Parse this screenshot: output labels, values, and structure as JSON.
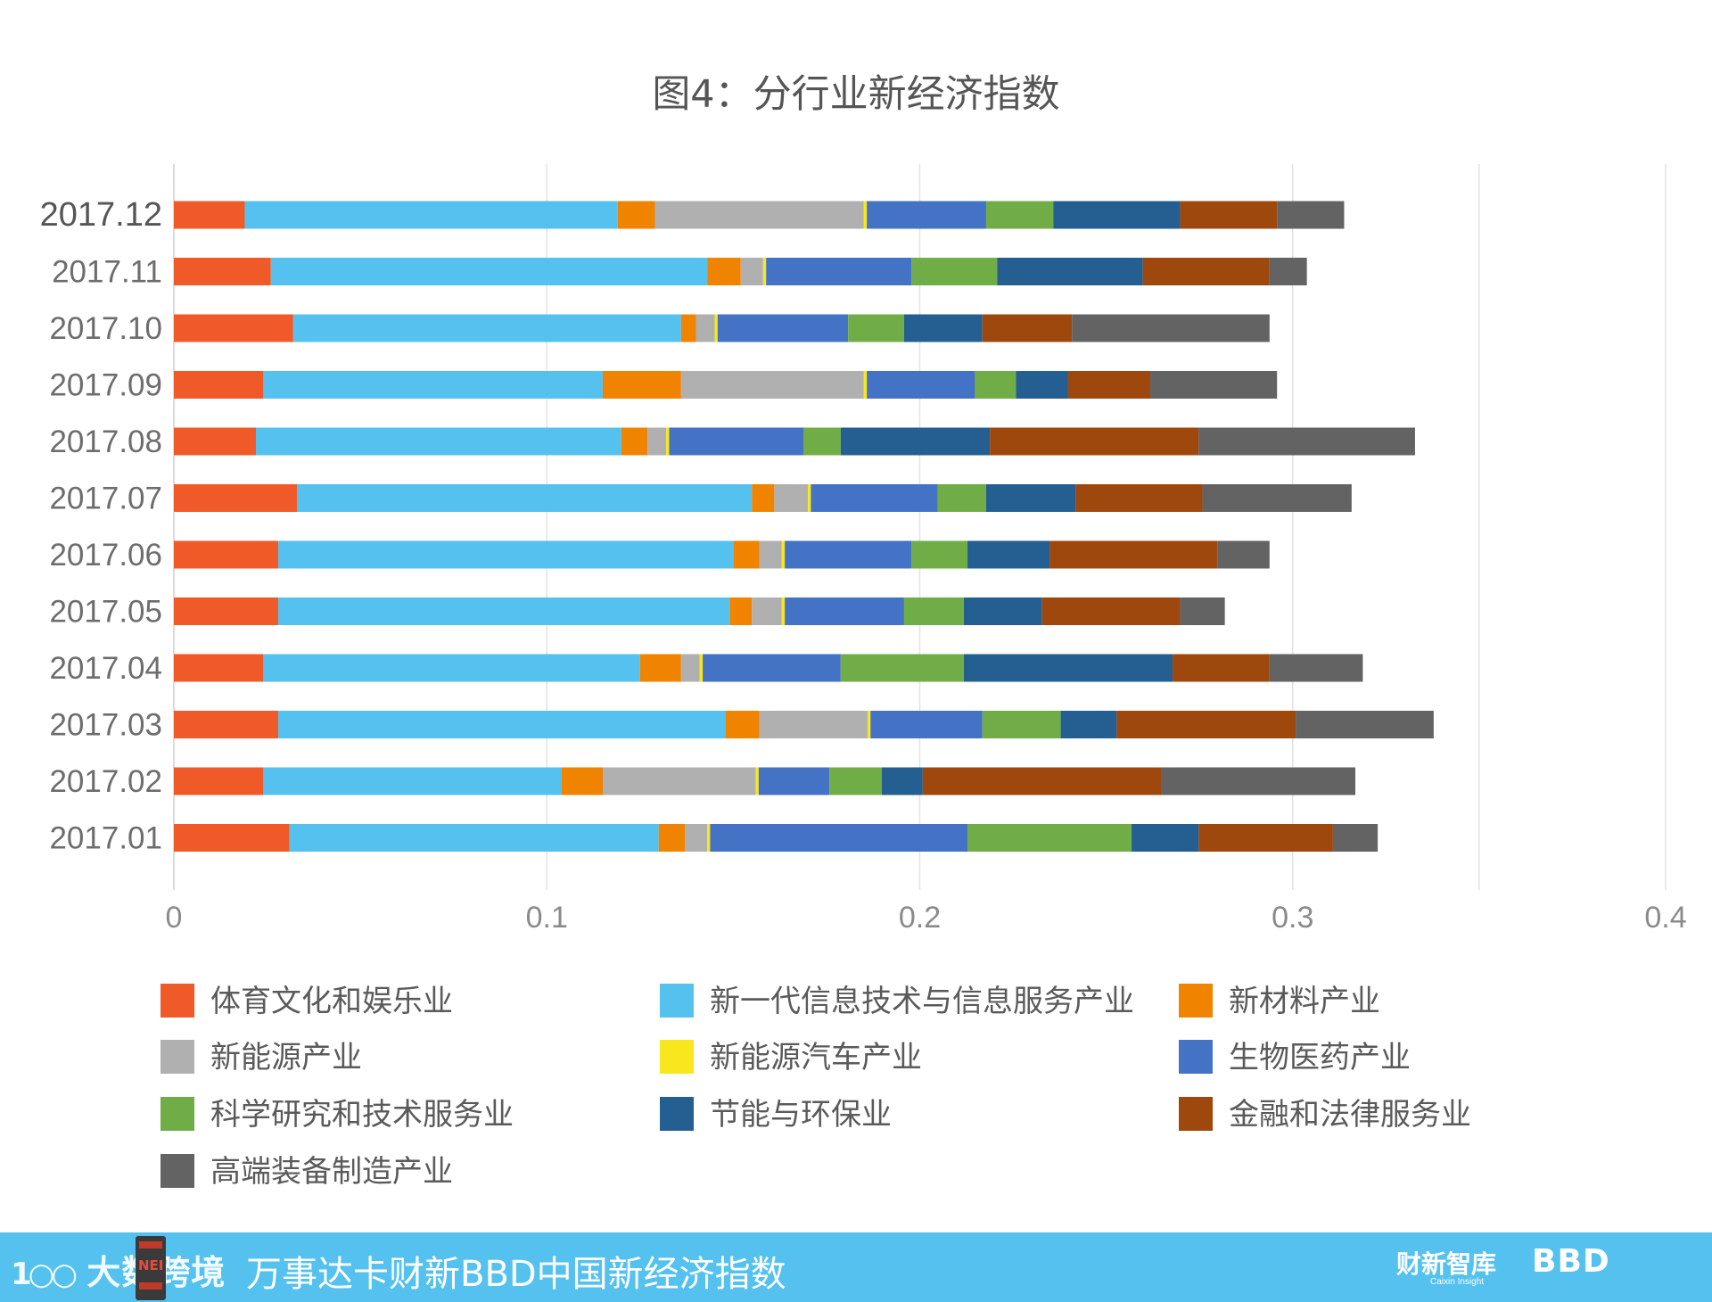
{
  "chart_data": {
    "type": "bar",
    "orientation": "horizontal",
    "stacked": true,
    "title": "图4：分行业新经济指数",
    "categories": [
      "2017.12",
      "2017.11",
      "2017.10",
      "2017.09",
      "2017.08",
      "2017.07",
      "2017.06",
      "2017.05",
      "2017.04",
      "2017.03",
      "2017.02",
      "2017.01"
    ],
    "series": [
      {
        "name": "体育文化和娱乐业",
        "color": "#f05a28",
        "values": [
          0.019,
          0.026,
          0.032,
          0.024,
          0.022,
          0.033,
          0.028,
          0.028,
          0.024,
          0.028,
          0.024,
          0.031
        ]
      },
      {
        "name": "新一代信息技术与信息服务产业",
        "color": "#55c1ee",
        "values": [
          0.1,
          0.117,
          0.104,
          0.091,
          0.098,
          0.122,
          0.122,
          0.121,
          0.101,
          0.12,
          0.08,
          0.099
        ]
      },
      {
        "name": "新材料产业",
        "color": "#f08300",
        "values": [
          0.01,
          0.009,
          0.004,
          0.021,
          0.007,
          0.006,
          0.007,
          0.006,
          0.011,
          0.009,
          0.011,
          0.007
        ]
      },
      {
        "name": "新能源产业",
        "color": "#b0b0b0",
        "values": [
          0.056,
          0.006,
          0.005,
          0.049,
          0.005,
          0.009,
          0.006,
          0.008,
          0.005,
          0.029,
          0.041,
          0.006
        ]
      },
      {
        "name": "新能源汽车产业",
        "color": "#f8e71c",
        "values": [
          0.0008,
          0.0008,
          0.0008,
          0.0008,
          0.0008,
          0.0008,
          0.0008,
          0.0008,
          0.0008,
          0.0008,
          0.0008,
          0.0008
        ]
      },
      {
        "name": "生物医药产业",
        "color": "#4472c4",
        "values": [
          0.032,
          0.039,
          0.035,
          0.029,
          0.036,
          0.034,
          0.034,
          0.032,
          0.037,
          0.03,
          0.019,
          0.069
        ]
      },
      {
        "name": "科学研究和技术服务业",
        "color": "#70ad47",
        "values": [
          0.018,
          0.023,
          0.015,
          0.011,
          0.01,
          0.013,
          0.015,
          0.016,
          0.033,
          0.021,
          0.014,
          0.044
        ]
      },
      {
        "name": "节能与环保业",
        "color": "#255e91",
        "values": [
          0.034,
          0.039,
          0.021,
          0.014,
          0.04,
          0.024,
          0.022,
          0.021,
          0.056,
          0.015,
          0.011,
          0.018
        ]
      },
      {
        "name": "金融和法律服务业",
        "color": "#9e480e",
        "values": [
          0.026,
          0.034,
          0.024,
          0.022,
          0.056,
          0.034,
          0.045,
          0.037,
          0.026,
          0.048,
          0.064,
          0.036
        ]
      },
      {
        "name": "高端装备制造产业",
        "color": "#636363",
        "values": [
          0.018,
          0.01,
          0.053,
          0.034,
          0.058,
          0.04,
          0.014,
          0.012,
          0.025,
          0.037,
          0.052,
          0.012
        ]
      }
    ],
    "xlim": [
      0,
      0.4
    ],
    "xticks": [
      "0",
      "0.1",
      "0.2",
      "0.3",
      "0.4"
    ],
    "grid": true,
    "legend_position": "bottom"
  },
  "footer": {
    "left_logo": "大数跨境",
    "left_logo_circles": "1○○",
    "badge_text": "NEI",
    "main_text": "万事达卡财新BBD中国新经济指数",
    "caixin_logo": "财新智库",
    "caixin_sub": "Caixin Insight",
    "bbd_logo": "BBD"
  }
}
